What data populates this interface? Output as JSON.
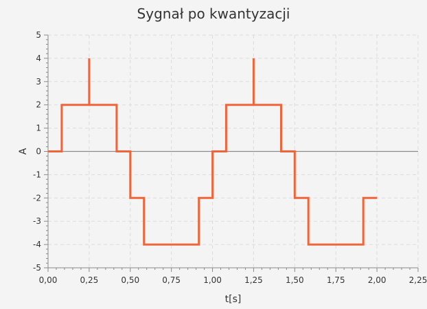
{
  "chart_data": {
    "type": "line",
    "title": "Sygnał po kwantyzacji",
    "xlabel": "t[s]",
    "ylabel": "A",
    "xlim": [
      0,
      2.25
    ],
    "ylim": [
      -5,
      5
    ],
    "grid": true,
    "x_ticks": [
      "0,00",
      "0,25",
      "0,50",
      "0,75",
      "1,00",
      "1,25",
      "1,50",
      "1,75",
      "2,00",
      "2,25"
    ],
    "y_ticks": [
      "5",
      "4",
      "3",
      "2",
      "1",
      "0",
      "-1",
      "-2",
      "-3",
      "-4",
      "-5"
    ],
    "colors": {
      "line": "#f0643a",
      "zero_line": "#8a8a8a",
      "grid": "#dcdcdc",
      "axis": "#888888",
      "background": "#f4f4f4"
    },
    "series": [
      {
        "x": [
          0,
          0.083,
          0.083,
          0.25,
          0.25,
          0.25,
          0.417,
          0.417,
          0.5,
          0.5,
          0.583,
          0.583,
          0.917,
          0.917,
          1.0,
          1.0,
          1.083,
          1.083,
          1.25,
          1.25,
          1.25,
          1.417,
          1.417,
          1.5,
          1.5,
          1.583,
          1.583,
          1.917,
          1.917,
          2.0
        ],
        "y": [
          0,
          0,
          2,
          2,
          4,
          2,
          2,
          0,
          0,
          -2,
          -2,
          -4,
          -4,
          -2,
          -2,
          0,
          0,
          2,
          2,
          4,
          2,
          2,
          0,
          0,
          -2,
          -2,
          -4,
          -4,
          -2,
          -2
        ]
      }
    ]
  }
}
